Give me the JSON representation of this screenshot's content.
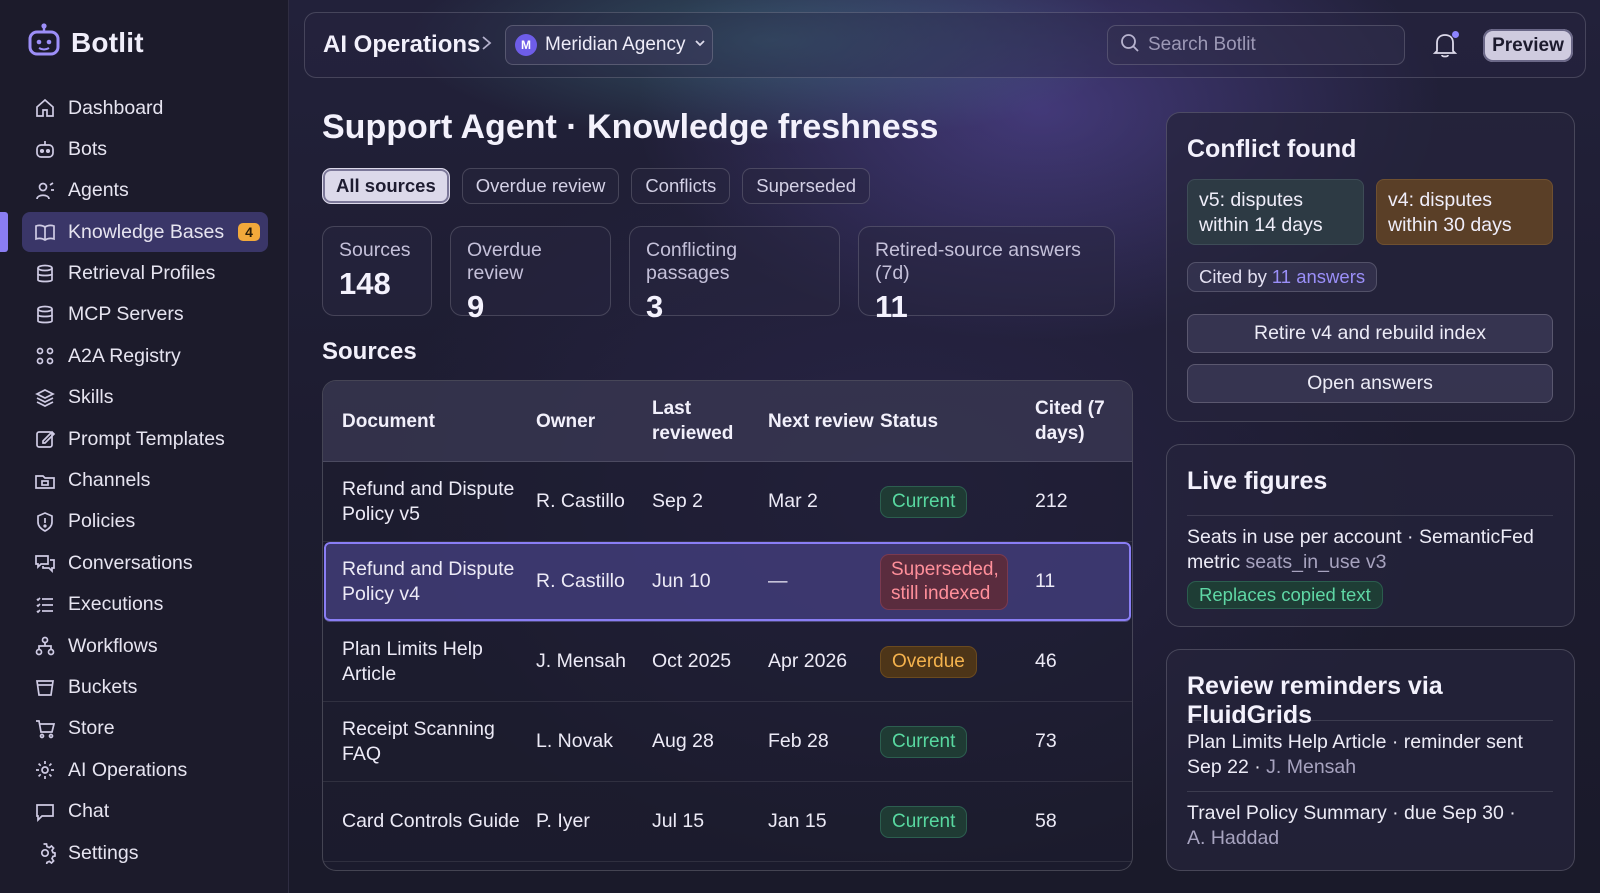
{
  "app": {
    "name": "Botlit"
  },
  "sidebar": {
    "items": [
      {
        "label": "Dashboard",
        "icon": "home-icon"
      },
      {
        "label": "Bots",
        "icon": "bot-icon"
      },
      {
        "label": "Agents",
        "icon": "agents-icon"
      },
      {
        "label": "Knowledge Bases",
        "icon": "book-icon",
        "badge": "4",
        "active": true
      },
      {
        "label": "Retrieval Profiles",
        "icon": "database-icon"
      },
      {
        "label": "MCP Servers",
        "icon": "database-icon"
      },
      {
        "label": "A2A Registry",
        "icon": "registry-icon"
      },
      {
        "label": "Skills",
        "icon": "layers-icon"
      },
      {
        "label": "Prompt Templates",
        "icon": "edit-icon"
      },
      {
        "label": "Channels",
        "icon": "folder-icon"
      },
      {
        "label": "Policies",
        "icon": "shield-icon"
      },
      {
        "label": "Conversations",
        "icon": "chat-bubbles-icon"
      },
      {
        "label": "Executions",
        "icon": "list-icon"
      },
      {
        "label": "Workflows",
        "icon": "workflow-icon"
      },
      {
        "label": "Buckets",
        "icon": "bucket-icon"
      },
      {
        "label": "Store",
        "icon": "cart-icon"
      },
      {
        "label": "AI Operations",
        "icon": "gear-icon"
      },
      {
        "label": "Chat",
        "icon": "chat-icon"
      },
      {
        "label": "Settings",
        "icon": "settings-icon"
      }
    ]
  },
  "header": {
    "breadcrumb_title": "AI Operations",
    "workspace_initial": "M",
    "workspace_name": "Meridian Agency",
    "search_placeholder": "Search Botlit",
    "preview_label": "Preview"
  },
  "main": {
    "title": "Support Agent · Knowledge freshness",
    "filters": [
      "All sources",
      "Overdue review",
      "Conflicts",
      "Superseded"
    ],
    "active_filter": "All sources",
    "stats": [
      {
        "label": "Sources",
        "value": "148"
      },
      {
        "label": "Overdue review",
        "value": "9"
      },
      {
        "label": "Conflicting passages",
        "value": "3"
      },
      {
        "label": "Retired-source answers (7d)",
        "value": "11"
      }
    ],
    "section_title": "Sources",
    "table": {
      "headers": [
        "Document",
        "Owner",
        "Last reviewed",
        "Next review",
        "Status",
        "Cited (7 days)"
      ],
      "rows": [
        {
          "document": "Refund and Dispute Policy v5",
          "owner": "R. Castillo",
          "last": "Sep 2",
          "next": "Mar 2",
          "status": "Current",
          "status_type": "current",
          "cited": "212"
        },
        {
          "document": "Refund and Dispute Policy v4",
          "owner": "R. Castillo",
          "last": "Jun 10",
          "next": "—",
          "status": "Superseded, still indexed",
          "status_type": "superseded",
          "cited": "11",
          "selected": true
        },
        {
          "document": "Plan Limits Help Article",
          "owner": "J. Mensah",
          "last": "Oct 2025",
          "next": "Apr 2026",
          "status": "Overdue",
          "status_type": "overdue",
          "cited": "46"
        },
        {
          "document": "Receipt Scanning FAQ",
          "owner": "L. Novak",
          "last": "Aug 28",
          "next": "Feb 28",
          "status": "Current",
          "status_type": "current",
          "cited": "73"
        },
        {
          "document": "Card Controls Guide",
          "owner": "P. Iyer",
          "last": "Jul 15",
          "next": "Jan 15",
          "status": "Current",
          "status_type": "current",
          "cited": "58"
        }
      ]
    }
  },
  "conflict_card": {
    "title": "Conflict found",
    "v5_text": "v5: disputes within 14 days",
    "v4_text": "v4: disputes within 30 days",
    "cited_prefix": "Cited by",
    "cited_link": "11 answers",
    "retire_button": "Retire v4 and rebuild index",
    "open_button": "Open answers"
  },
  "live_figures": {
    "title": "Live figures",
    "line1": "Seats in use per account · SemanticFed",
    "line2_prefix": "metric",
    "line2_code": "seats_in_use v3",
    "pill": "Replaces copied text"
  },
  "reminders": {
    "title": "Review reminders via FluidGrids",
    "item1_main": "Plan Limits Help Article · reminder sent",
    "item1_date": "Sep 22 ·",
    "item1_person": "J. Mensah",
    "item2_main": "Travel Policy Summary · due Sep 30 ·",
    "item2_person": "A. Haddad"
  },
  "colors": {
    "accent": "#8a7df2",
    "current": "#58d8a0",
    "superseded": "#ff8f9a",
    "overdue": "#f4b24d",
    "badge": "#f2a93b"
  }
}
